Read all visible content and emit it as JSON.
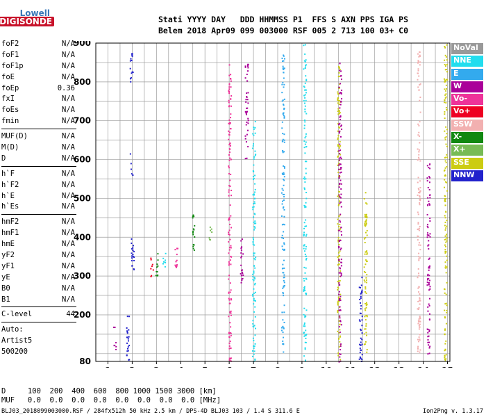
{
  "logo": {
    "line1": "Lowell",
    "line2": "DIGISONDE"
  },
  "header": {
    "labels": "Stati YYYY DAY   DDD HHMMSS P1  FFS S AXN PPS IGA PS",
    "values": "Belem 2018 Apr09 099 003000 RSF 005 2 713 100 03+ C0"
  },
  "params": {
    "group1": [
      {
        "name": "foF2",
        "value": "N/A"
      },
      {
        "name": "foF1",
        "value": "N/A"
      },
      {
        "name": "foF1p",
        "value": "N/A"
      },
      {
        "name": "foE",
        "value": "N/A"
      },
      {
        "name": "foEp",
        "value": "0.36"
      },
      {
        "name": "fxI",
        "value": "N/A"
      },
      {
        "name": "foEs",
        "value": "N/A"
      },
      {
        "name": "fmin",
        "value": "N/A"
      }
    ],
    "group2": [
      {
        "name": "MUF(D)",
        "value": "N/A"
      },
      {
        "name": "M(D)",
        "value": "N/A"
      },
      {
        "name": "D",
        "value": "N/A"
      }
    ],
    "group3": [
      {
        "name": "h`F",
        "value": "N/A"
      },
      {
        "name": "h`F2",
        "value": "N/A"
      },
      {
        "name": "h`E",
        "value": "N/A"
      },
      {
        "name": "h`Es",
        "value": "N/A"
      }
    ],
    "group4": [
      {
        "name": "hmF2",
        "value": "N/A"
      },
      {
        "name": "hmF1",
        "value": "N/A"
      },
      {
        "name": "hmE",
        "value": "N/A"
      },
      {
        "name": "yF2",
        "value": "N/A"
      },
      {
        "name": "yF1",
        "value": "N/A"
      },
      {
        "name": "yE",
        "value": "N/A"
      },
      {
        "name": "B0",
        "value": "N/A"
      },
      {
        "name": "B1",
        "value": "N/A"
      }
    ],
    "clevel": {
      "name": "C-level",
      "value": "44"
    },
    "auto": [
      "Auto:",
      "Artist5",
      "500200"
    ]
  },
  "legend": [
    {
      "label": "NoVal",
      "color": "#999999"
    },
    {
      "label": "NNE",
      "color": "#22ddee"
    },
    {
      "label": "E",
      "color": "#33aaee"
    },
    {
      "label": "W",
      "color": "#aa0099"
    },
    {
      "label": "Vo-",
      "color": "#ee3399"
    },
    {
      "label": "Vo+",
      "color": "#ee0022"
    },
    {
      "label": "SSW",
      "color": "#f2b0b0"
    },
    {
      "label": "X-",
      "color": "#118811"
    },
    {
      "label": "X+",
      "color": "#77bb55"
    },
    {
      "label": "SSE",
      "color": "#cccc11"
    },
    {
      "label": "NNW",
      "color": "#2222cc"
    }
  ],
  "footer": {
    "dline": "D     100  200  400  600  800 1000 1500 3000 [km]",
    "mufline": "MUF   0.0  0.0  0.0  0.0  0.0  0.0  0.0  0.0 [MHz]",
    "file": "BLJ03_2018099003000.RSF / 284fx512h 50 kHz 2.5 km / DPS-4D BLJ03 103 / 1.4 S 311.6 E",
    "version": "Ion2Png v. 1.3.17"
  },
  "chart_data": {
    "type": "scatter",
    "title": "",
    "xlabel": "",
    "ylabel": "",
    "xlim": [
      0.5,
      15.1
    ],
    "ylim": [
      80,
      900
    ],
    "x_ticks": [
      1,
      2,
      3,
      4,
      5,
      6,
      7,
      8,
      9,
      10,
      11,
      12,
      13,
      14,
      15
    ],
    "y_ticks": [
      80,
      200,
      300,
      400,
      500,
      600,
      700,
      800,
      900
    ],
    "grid": true,
    "vertical_gridlines": [
      1,
      1.5,
      2,
      2.5,
      3,
      3.5,
      4,
      4.5,
      5,
      5.5,
      6,
      6.5,
      7,
      7.5,
      8,
      8.5,
      9,
      9.5,
      10,
      10.5,
      11,
      11.5,
      12,
      12.5,
      13,
      13.5,
      14,
      14.5,
      15
    ],
    "horizontal_gridlines": [
      100,
      150,
      200,
      250,
      300,
      350,
      400,
      450,
      500,
      550,
      600,
      650,
      700,
      750,
      800,
      850,
      900
    ],
    "clusters": [
      {
        "x": 1.25,
        "y": [
          110,
          175
        ],
        "color": "#aa0099"
      },
      {
        "x": 1.8,
        "y": [
          80,
          200
        ],
        "color": "#2222cc"
      },
      {
        "x": 1.95,
        "y": [
          800,
          880
        ],
        "color": "#2222cc"
      },
      {
        "x": 1.95,
        "y": [
          560,
          620
        ],
        "color": "#2222cc"
      },
      {
        "x": 2.0,
        "y": [
          300,
          400
        ],
        "color": "#2222cc"
      },
      {
        "x": 2.8,
        "y": [
          300,
          350
        ],
        "color": "#ee0022"
      },
      {
        "x": 3.0,
        "y": [
          300,
          360
        ],
        "color": "#118811"
      },
      {
        "x": 3.3,
        "y": [
          320,
          360
        ],
        "color": "#22ddee"
      },
      {
        "x": 3.8,
        "y": [
          320,
          380
        ],
        "color": "#ee3399"
      },
      {
        "x": 4.5,
        "y": [
          350,
          460
        ],
        "color": "#118811"
      },
      {
        "x": 5.2,
        "y": [
          370,
          440
        ],
        "color": "#77bb55"
      },
      {
        "x": 6.0,
        "y": [
          80,
          850
        ],
        "color": "#ee3399"
      },
      {
        "x": 6.5,
        "y": [
          280,
          400
        ],
        "color": "#aa0099"
      },
      {
        "x": 6.7,
        "y": [
          600,
          850
        ],
        "color": "#aa0099"
      },
      {
        "x": 7.0,
        "y": [
          80,
          700
        ],
        "color": "#22ddee"
      },
      {
        "x": 8.2,
        "y": [
          100,
          880
        ],
        "color": "#33aaee"
      },
      {
        "x": 9.1,
        "y": [
          80,
          900
        ],
        "color": "#22ddee"
      },
      {
        "x": 10.5,
        "y": [
          80,
          850
        ],
        "color": "#cccc11"
      },
      {
        "x": 10.55,
        "y": [
          80,
          850
        ],
        "color": "#aa0099"
      },
      {
        "x": 11.4,
        "y": [
          80,
          300
        ],
        "color": "#2222cc"
      },
      {
        "x": 11.6,
        "y": [
          100,
          520
        ],
        "color": "#cccc11"
      },
      {
        "x": 13.8,
        "y": [
          100,
          880
        ],
        "color": "#f2b0b0"
      },
      {
        "x": 14.2,
        "y": [
          100,
          600
        ],
        "color": "#aa0099"
      },
      {
        "x": 14.9,
        "y": [
          80,
          900
        ],
        "color": "#cccc11"
      }
    ]
  }
}
